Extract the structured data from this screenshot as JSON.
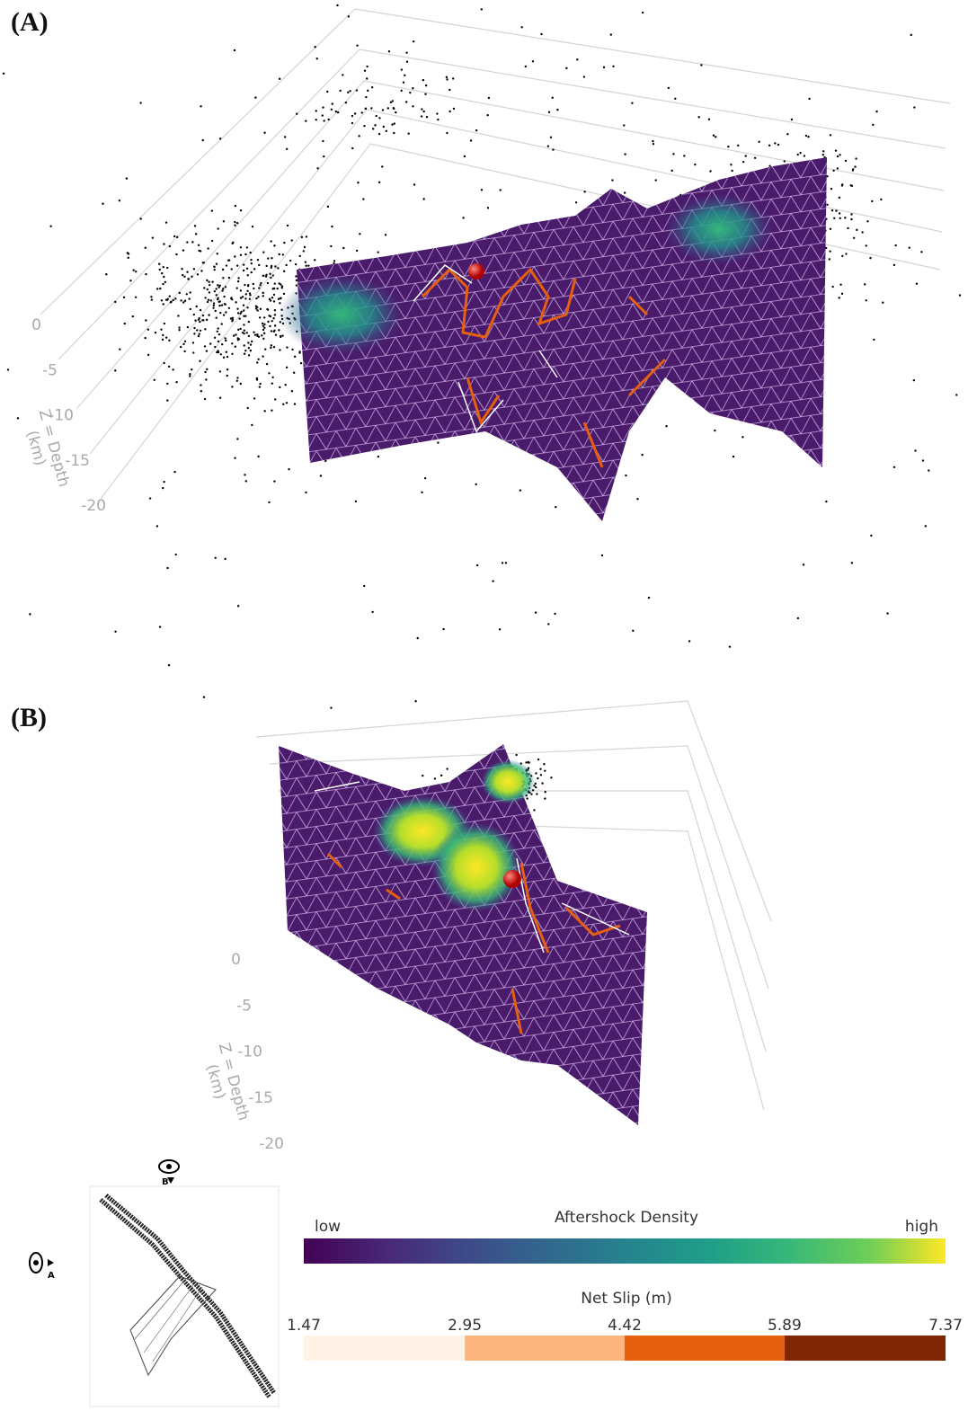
{
  "panels": [
    {
      "label": "(A)",
      "z_axis": {
        "title_lines": [
          "Z = Depth",
          "(km)"
        ],
        "ticks": [
          0,
          -5,
          -10,
          -15,
          -20
        ]
      }
    },
    {
      "label": "(B)",
      "z_axis": {
        "title_lines": [
          "Z = Depth",
          "(km)"
        ],
        "ticks": [
          0,
          -5,
          -10,
          -15,
          -20
        ]
      }
    }
  ],
  "inset": {
    "view_labels": [
      "B",
      "A"
    ]
  },
  "legend": {
    "density": {
      "title": "Aftershock Density",
      "low": "low",
      "high": "high"
    },
    "slip": {
      "title": "Net Slip (m)",
      "ticks": [
        1.47,
        2.95,
        4.42,
        5.89,
        7.37
      ],
      "colors": [
        "#fff2e6",
        "#fdb57e",
        "#e6600f",
        "#7f2704"
      ]
    }
  }
}
